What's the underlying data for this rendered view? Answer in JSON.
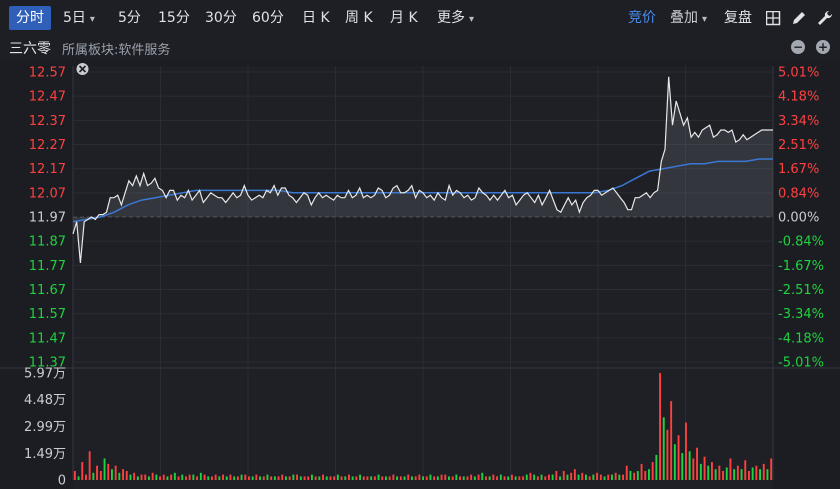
{
  "toolbar": {
    "tabs": [
      {
        "label": "分时",
        "active": true
      },
      {
        "label": "5日",
        "chevron": true
      },
      {
        "label": "5分"
      },
      {
        "label": "15分"
      },
      {
        "label": "30分"
      },
      {
        "label": "60分"
      },
      {
        "label": "日 K"
      },
      {
        "label": "周 K"
      },
      {
        "label": "月 K"
      },
      {
        "label": "更多",
        "chevron": true
      }
    ],
    "bidding_label": "竞价",
    "overlay_label": "叠加",
    "restore_label": "复盘",
    "icons": [
      "grid-icon",
      "pen-icon",
      "wrench-icon"
    ]
  },
  "info": {
    "stock_name": "三六零",
    "sector_label": "所属板块:软件服务"
  },
  "colors": {
    "up": "#ff4040",
    "down": "#1fd23f",
    "flat": "#c9ccd3",
    "price_line": "#e8e8e8",
    "avg_line": "#3a78d4",
    "accent": "#2f5fb8",
    "bidding": "#4a8cf0"
  },
  "chart_data": {
    "type": "line",
    "price_ticks": [
      "12.57",
      "12.47",
      "12.37",
      "12.27",
      "12.17",
      "12.07",
      "11.97",
      "11.87",
      "11.77",
      "11.67",
      "11.57",
      "11.47",
      "11.37"
    ],
    "pct_ticks": [
      "5.01%",
      "4.18%",
      "3.34%",
      "2.51%",
      "1.67%",
      "0.84%",
      "0.00%",
      "-0.84%",
      "-1.67%",
      "-2.51%",
      "-3.34%",
      "-4.18%",
      "-5.01%"
    ],
    "prev_close": 11.97,
    "ylim": [
      11.37,
      12.57
    ],
    "price": [
      11.9,
      11.95,
      11.78,
      11.95,
      11.96,
      11.97,
      11.96,
      11.98,
      11.98,
      11.99,
      12.05,
      12.05,
      12.06,
      12.02,
      12.07,
      12.12,
      12.1,
      12.14,
      12.1,
      12.15,
      12.1,
      12.11,
      12.13,
      12.09,
      12.08,
      12.05,
      12.08,
      12.08,
      12.04,
      12.06,
      12.05,
      12.08,
      12.04,
      12.06,
      12.08,
      12.03,
      12.05,
      12.07,
      12.06,
      12.05,
      12.05,
      12.03,
      12.05,
      12.07,
      12.05,
      12.06,
      12.1,
      12.06,
      12.04,
      12.05,
      12.06,
      12.05,
      12.08,
      12.07,
      12.1,
      12.06,
      12.09,
      12.09,
      12.06,
      12.05,
      12.03,
      12.05,
      12.07,
      12.06,
      12.02,
      12.05,
      12.07,
      12.05,
      12.06,
      12.05,
      12.04,
      12.06,
      12.05,
      12.05,
      12.08,
      12.05,
      12.06,
      12.09,
      12.05,
      12.06,
      12.05,
      12.06,
      12.09,
      12.08,
      12.05,
      12.06,
      12.09,
      12.1,
      12.07,
      12.07,
      12.08,
      12.1,
      12.05,
      12.08,
      12.07,
      12.05,
      12.06,
      12.04,
      12.07,
      12.05,
      12.04,
      12.1,
      12.06,
      12.08,
      12.07,
      12.05,
      12.06,
      12.04,
      12.05,
      12.09,
      12.07,
      12.06,
      12.04,
      12.06,
      12.04,
      12.06,
      12.08,
      12.05,
      12.06,
      12.02,
      12.04,
      12.06,
      12.07,
      12.05,
      12.03,
      12.06,
      12.02,
      12.05,
      12.08,
      12.04,
      12.0,
      11.99,
      12.02,
      12.05,
      12.02,
      12.04,
      11.99,
      12.03,
      12.05,
      12.06,
      12.08,
      12.08,
      12.06,
      12.07,
      12.08,
      12.09,
      12.07,
      12.05,
      12.03,
      12.0,
      12.0,
      12.05,
      12.05,
      12.06,
      12.07,
      12.05,
      12.07,
      12.08,
      12.2,
      12.25,
      12.55,
      12.35,
      12.45,
      12.4,
      12.35,
      12.38,
      12.3,
      12.32,
      12.3,
      12.33,
      12.34,
      12.35,
      12.3,
      12.31,
      12.33,
      12.33,
      12.32,
      12.33,
      12.28,
      12.29,
      12.31,
      12.29,
      12.3,
      12.31,
      12.32,
      12.33,
      12.33,
      12.33,
      12.33
    ],
    "avg": [
      11.95,
      11.96,
      11.97,
      11.99,
      12.02,
      12.04,
      12.05,
      12.06,
      12.07,
      12.08,
      12.08,
      12.08,
      12.08,
      12.08,
      12.08,
      12.08,
      12.07,
      12.07,
      12.07,
      12.07,
      12.07,
      12.07,
      12.07,
      12.07,
      12.07,
      12.07,
      12.07,
      12.07,
      12.07,
      12.07,
      12.07,
      12.07,
      12.07,
      12.07,
      12.07,
      12.07,
      12.07,
      12.07,
      12.07,
      12.08,
      12.1,
      12.13,
      12.16,
      12.17,
      12.18,
      12.19,
      12.19,
      12.2,
      12.2,
      12.2,
      12.21,
      12.21
    ],
    "volume_ylim": [
      0,
      5.97
    ],
    "volume_ticks": [
      "5.97万",
      "4.48万",
      "2.99万",
      "1.49万",
      "0"
    ],
    "volumes": [
      0.5,
      0.2,
      1.0,
      0.3,
      1.6,
      0.4,
      0.8,
      0.5,
      1.2,
      0.9,
      0.6,
      0.8,
      0.4,
      0.6,
      0.5,
      0.3,
      0.4,
      0.2,
      0.3,
      0.3,
      0.2,
      0.4,
      0.3,
      0.2,
      0.3,
      0.2,
      0.3,
      0.4,
      0.2,
      0.3,
      0.2,
      0.3,
      0.3,
      0.2,
      0.4,
      0.3,
      0.2,
      0.2,
      0.3,
      0.2,
      0.3,
      0.2,
      0.3,
      0.2,
      0.2,
      0.3,
      0.3,
      0.2,
      0.2,
      0.3,
      0.2,
      0.2,
      0.3,
      0.2,
      0.2,
      0.2,
      0.3,
      0.2,
      0.2,
      0.3,
      0.3,
      0.2,
      0.2,
      0.2,
      0.3,
      0.2,
      0.2,
      0.3,
      0.2,
      0.2,
      0.2,
      0.3,
      0.2,
      0.2,
      0.3,
      0.2,
      0.2,
      0.3,
      0.2,
      0.2,
      0.2,
      0.2,
      0.3,
      0.2,
      0.2,
      0.2,
      0.3,
      0.2,
      0.2,
      0.2,
      0.3,
      0.2,
      0.2,
      0.3,
      0.2,
      0.2,
      0.3,
      0.2,
      0.2,
      0.3,
      0.3,
      0.2,
      0.2,
      0.3,
      0.2,
      0.2,
      0.2,
      0.3,
      0.2,
      0.3,
      0.4,
      0.2,
      0.2,
      0.3,
      0.2,
      0.3,
      0.2,
      0.2,
      0.3,
      0.2,
      0.2,
      0.2,
      0.3,
      0.4,
      0.3,
      0.2,
      0.3,
      0.2,
      0.3,
      0.3,
      0.5,
      0.2,
      0.5,
      0.3,
      0.4,
      0.6,
      0.3,
      0.4,
      0.3,
      0.2,
      0.3,
      0.4,
      0.3,
      0.2,
      0.3,
      0.3,
      0.4,
      0.3,
      0.3,
      0.8,
      0.5,
      0.4,
      0.5,
      0.9,
      0.5,
      0.6,
      1.0,
      1.4,
      5.97,
      3.5,
      2.8,
      4.4,
      2.0,
      2.5,
      1.5,
      3.2,
      1.6,
      1.2,
      1.8,
      0.9,
      1.3,
      0.8,
      1.0,
      0.6,
      0.8,
      0.5,
      0.7,
      1.2,
      0.6,
      0.8,
      0.6,
      1.1,
      0.5,
      0.7,
      0.8,
      0.6,
      0.9,
      0.6,
      1.2
    ],
    "volume_up": [
      1,
      0,
      1,
      1,
      1,
      0,
      1,
      1,
      0,
      1,
      0,
      1,
      0,
      1,
      1,
      0,
      1,
      0,
      1,
      1,
      0,
      1,
      0,
      1,
      1,
      0,
      1,
      0,
      1,
      0,
      1,
      1,
      0,
      1,
      0,
      1,
      0,
      1,
      1,
      0,
      1,
      0,
      1,
      0,
      1,
      0,
      1,
      1,
      0,
      1,
      0,
      1,
      0,
      1,
      0,
      1,
      1,
      0,
      1,
      0,
      1,
      0,
      1,
      1,
      0,
      1,
      0,
      1,
      0,
      1,
      1,
      0,
      1,
      0,
      1,
      0,
      1,
      0,
      1,
      1,
      0,
      1,
      0,
      1,
      0,
      1,
      1,
      0,
      1,
      0,
      1,
      0,
      1,
      1,
      0,
      1,
      0,
      1,
      0,
      1,
      1,
      0,
      1,
      0,
      1,
      0,
      1,
      1,
      0,
      1,
      0,
      1,
      0,
      1,
      1,
      0,
      1,
      0,
      1,
      0,
      1,
      1,
      0,
      1,
      0,
      1,
      0,
      1,
      1,
      0,
      1,
      0,
      1,
      0,
      1,
      1,
      0,
      1,
      0,
      1,
      0,
      1,
      1,
      0,
      1,
      0,
      1,
      0,
      1,
      1,
      0,
      1,
      0,
      1,
      1,
      0,
      1,
      0,
      1,
      0,
      1,
      1,
      0,
      1,
      0,
      1,
      0,
      1,
      1,
      0,
      1,
      0,
      1,
      0,
      1,
      1,
      0,
      1,
      0,
      1,
      0,
      1,
      1,
      0,
      1,
      0,
      1,
      0,
      1,
      1
    ]
  }
}
